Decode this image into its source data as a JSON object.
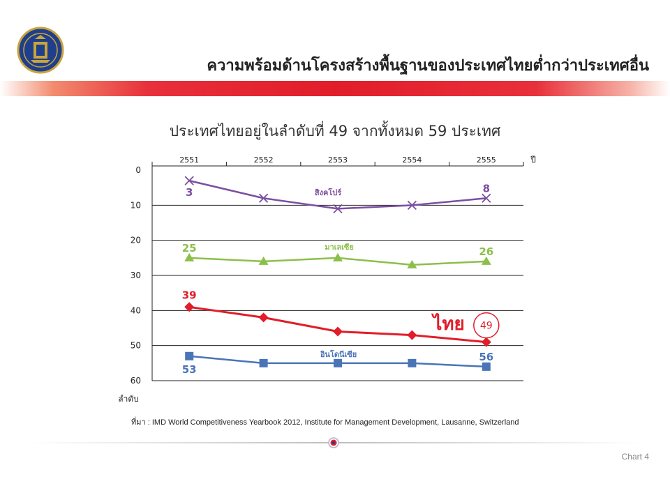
{
  "slide": {
    "title": "ความพร้อมด้านโครงสร้างพื้นฐานของประเทศไทยต่ำกว่าประเทศอื่น",
    "subtitle": "ประเทศไทยอยู่ในลำดับที่ 49 จากทั้งหมด 59 ประเทศ",
    "source": "ที่มา : IMD World Competitiveness Yearbook 2012, Institute for Management Development, Lausanne, Switzerland",
    "page_label": "Chart 4"
  },
  "colors": {
    "title_bar": "#e11d2a",
    "singapore": "#7b4fa0",
    "malaysia": "#8cbf4a",
    "thailand": "#e11d2a",
    "indonesia": "#4a74b8"
  },
  "chart_data": {
    "type": "line",
    "xlabel": "ปี",
    "ylabel": "ลำดับ",
    "x": [
      "2551",
      "2552",
      "2553",
      "2554",
      "2555"
    ],
    "ylim": [
      60,
      0
    ],
    "yticks": [
      "0",
      "10",
      "20",
      "30",
      "40",
      "50",
      "60"
    ],
    "y_inverted": true,
    "x_axis_position": "top",
    "grid": true,
    "series": [
      {
        "name": "สิงคโปร์",
        "values": [
          3,
          8,
          11,
          10,
          8
        ],
        "marker": "x",
        "color": "#7b4fa0",
        "first_label": "3",
        "last_label": "8"
      },
      {
        "name": "มาเลเซีย",
        "values": [
          25,
          26,
          25,
          27,
          26
        ],
        "marker": "triangle",
        "color": "#8cbf4a",
        "first_label": "25",
        "last_label": "26"
      },
      {
        "name": "ไทย",
        "values": [
          39,
          42,
          46,
          47,
          49
        ],
        "marker": "diamond",
        "color": "#e11d2a",
        "first_label": "39",
        "last_label": "49"
      },
      {
        "name": "อินโดนีเซีย",
        "values": [
          53,
          55,
          55,
          55,
          56
        ],
        "marker": "square",
        "color": "#4a74b8",
        "first_label": "53",
        "last_label": "56"
      }
    ]
  }
}
